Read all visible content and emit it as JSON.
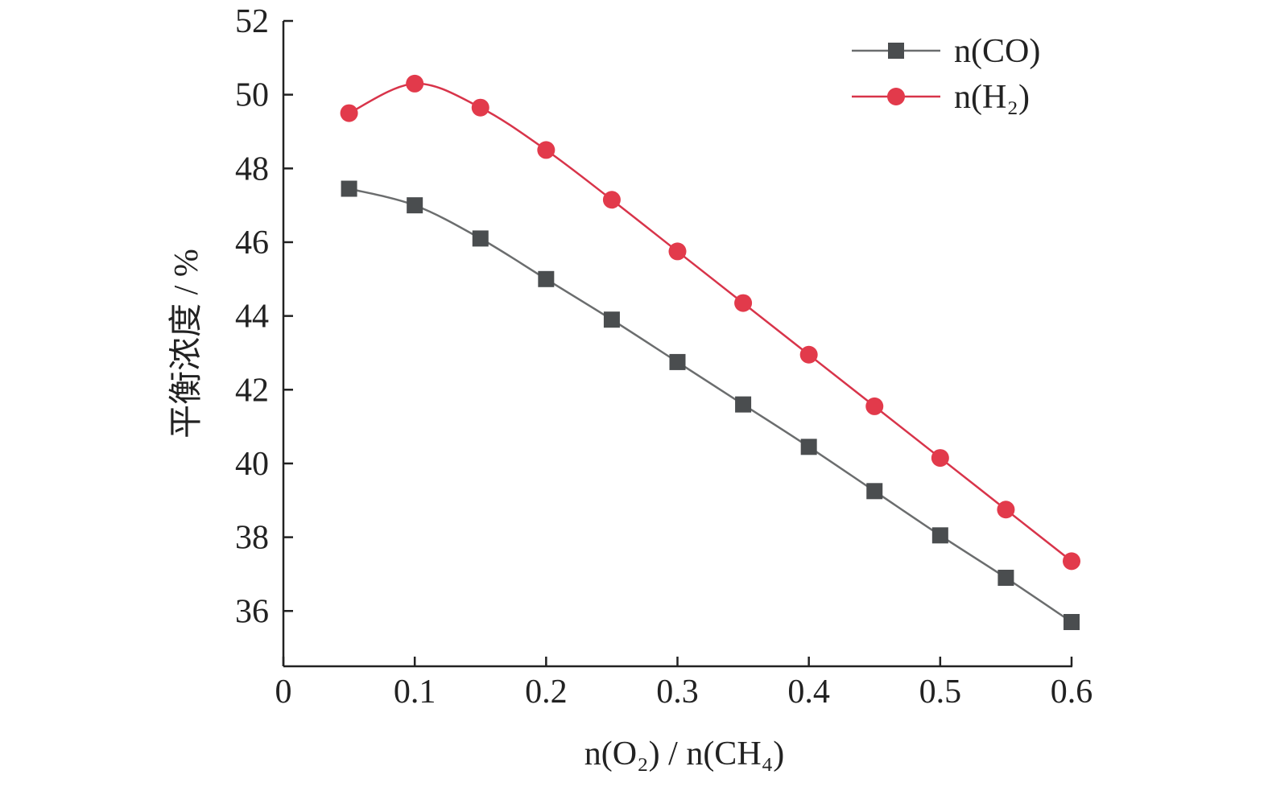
{
  "chart_data": {
    "type": "line",
    "xlabel": "n(O₂) / n(CH₄)",
    "ylabel": "平衡浓度 / %",
    "xlim": [
      0,
      0.6
    ],
    "ylim": [
      34.5,
      52
    ],
    "x_ticks": [
      "0",
      "0.1",
      "0.2",
      "0.3",
      "0.4",
      "0.5",
      "0.6"
    ],
    "y_ticks": [
      "36",
      "38",
      "40",
      "42",
      "44",
      "46",
      "48",
      "50",
      "52"
    ],
    "x": [
      0.05,
      0.1,
      0.15,
      0.2,
      0.25,
      0.3,
      0.35,
      0.4,
      0.45,
      0.5,
      0.55,
      0.6
    ],
    "legend_position": "top-right",
    "grid": false,
    "series": [
      {
        "name": "n(CO)",
        "marker": "square",
        "color": "#4a4d4f",
        "line_color": "#6b6d6e",
        "values": [
          47.45,
          47.0,
          46.1,
          45.0,
          43.9,
          42.75,
          41.6,
          40.45,
          39.25,
          38.05,
          36.9,
          35.7
        ]
      },
      {
        "name": "n(H₂)",
        "marker": "circle",
        "color": "#e23a4b",
        "line_color": "#d8344a",
        "values": [
          49.5,
          50.3,
          49.65,
          48.5,
          47.15,
          45.75,
          44.35,
          42.95,
          41.55,
          40.15,
          38.75,
          37.35
        ]
      }
    ]
  }
}
